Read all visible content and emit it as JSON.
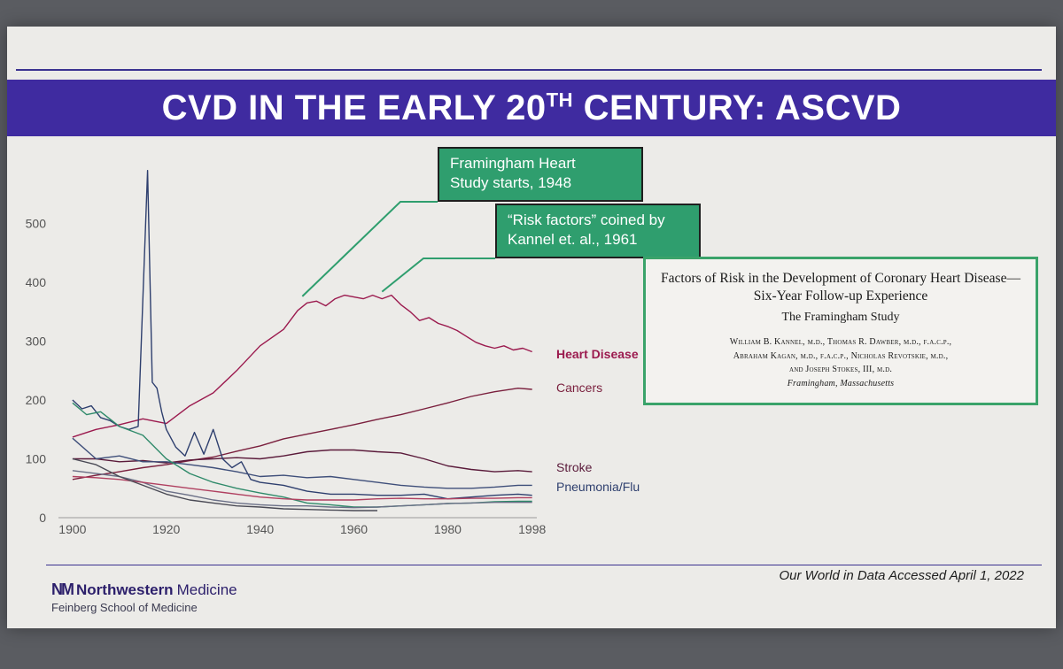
{
  "slide": {
    "title_main": "CVD IN THE EARLY 20",
    "title_sup": "TH",
    "title_end": " CENTURY: ASCVD",
    "callout_fhs_line1": "Framingham Heart",
    "callout_fhs_line2": "Study starts, 1948",
    "callout_rf_line1": "“Risk factors” coined by",
    "callout_rf_line2": "Kannel et. al., 1961",
    "paper": {
      "title_line1": "Factors of Risk in the Development of Coronary Heart Disease—",
      "title_line2": "Six-Year Follow-up Experience",
      "study": "The Framingham Study",
      "authors_line1": "William B. Kannel, m.d., Thomas R. Dawber, m.d., f.a.c.p.,",
      "authors_line2": "Abraham Kagan, m.d., f.a.c.p., Nicholas Revotskie, m.d.,",
      "authors_line3": "and Joseph Stokes, III, m.d.",
      "location": "Framingham, Massachusetts"
    },
    "logo_mark": "NM",
    "logo_name": "Northwestern",
    "logo_medicine": "Medicine",
    "logo_sub": "Feinberg School of Medicine",
    "source": "Our World in Data Accessed April 1, 2022"
  },
  "chart_data": {
    "type": "line",
    "title": "",
    "xlabel": "",
    "ylabel": "",
    "xlim": [
      1897,
      1999
    ],
    "ylim": [
      0,
      600
    ],
    "x_ticks": [
      1900,
      1920,
      1940,
      1960,
      1980,
      1998
    ],
    "y_ticks": [
      0,
      100,
      200,
      300,
      400,
      500
    ],
    "grid": false,
    "series": [
      {
        "name": "Heart Disease",
        "color": "#9b1a4e",
        "points": [
          [
            1900,
            137
          ],
          [
            1905,
            150
          ],
          [
            1910,
            158
          ],
          [
            1915,
            168
          ],
          [
            1920,
            160
          ],
          [
            1925,
            190
          ],
          [
            1930,
            212
          ],
          [
            1935,
            250
          ],
          [
            1940,
            292
          ],
          [
            1945,
            320
          ],
          [
            1948,
            352
          ],
          [
            1950,
            365
          ],
          [
            1952,
            368
          ],
          [
            1954,
            360
          ],
          [
            1956,
            372
          ],
          [
            1958,
            378
          ],
          [
            1960,
            375
          ],
          [
            1962,
            372
          ],
          [
            1964,
            378
          ],
          [
            1966,
            372
          ],
          [
            1968,
            378
          ],
          [
            1970,
            362
          ],
          [
            1972,
            350
          ],
          [
            1974,
            335
          ],
          [
            1976,
            340
          ],
          [
            1978,
            330
          ],
          [
            1980,
            325
          ],
          [
            1982,
            318
          ],
          [
            1984,
            308
          ],
          [
            1986,
            298
          ],
          [
            1988,
            292
          ],
          [
            1990,
            288
          ],
          [
            1992,
            292
          ],
          [
            1994,
            285
          ],
          [
            1996,
            288
          ],
          [
            1998,
            282
          ]
        ]
      },
      {
        "name": "Cancers",
        "color": "#7a1f3d",
        "points": [
          [
            1900,
            65
          ],
          [
            1905,
            72
          ],
          [
            1910,
            78
          ],
          [
            1915,
            85
          ],
          [
            1920,
            90
          ],
          [
            1925,
            97
          ],
          [
            1930,
            103
          ],
          [
            1935,
            113
          ],
          [
            1940,
            122
          ],
          [
            1945,
            134
          ],
          [
            1950,
            142
          ],
          [
            1955,
            150
          ],
          [
            1960,
            158
          ],
          [
            1965,
            167
          ],
          [
            1970,
            175
          ],
          [
            1975,
            185
          ],
          [
            1980,
            195
          ],
          [
            1985,
            206
          ],
          [
            1990,
            214
          ],
          [
            1995,
            220
          ],
          [
            1998,
            218
          ]
        ]
      },
      {
        "name": "Stroke",
        "color": "#5a1a3a",
        "points": [
          [
            1900,
            100
          ],
          [
            1905,
            100
          ],
          [
            1910,
            95
          ],
          [
            1915,
            97
          ],
          [
            1920,
            93
          ],
          [
            1925,
            98
          ],
          [
            1930,
            100
          ],
          [
            1935,
            102
          ],
          [
            1940,
            100
          ],
          [
            1945,
            105
          ],
          [
            1950,
            112
          ],
          [
            1955,
            115
          ],
          [
            1960,
            115
          ],
          [
            1965,
            112
          ],
          [
            1970,
            110
          ],
          [
            1975,
            100
          ],
          [
            1980,
            88
          ],
          [
            1985,
            82
          ],
          [
            1990,
            78
          ],
          [
            1995,
            80
          ],
          [
            1998,
            78
          ]
        ]
      },
      {
        "name": "Pneumonia/Flu",
        "color": "#2e3f6e",
        "points": [
          [
            1900,
            200
          ],
          [
            1902,
            185
          ],
          [
            1904,
            190
          ],
          [
            1906,
            170
          ],
          [
            1908,
            165
          ],
          [
            1910,
            155
          ],
          [
            1912,
            150
          ],
          [
            1914,
            155
          ],
          [
            1916,
            590
          ],
          [
            1917,
            230
          ],
          [
            1918,
            220
          ],
          [
            1919,
            180
          ],
          [
            1920,
            150
          ],
          [
            1922,
            120
          ],
          [
            1924,
            105
          ],
          [
            1926,
            145
          ],
          [
            1928,
            108
          ],
          [
            1930,
            150
          ],
          [
            1932,
            100
          ],
          [
            1934,
            85
          ],
          [
            1936,
            95
          ],
          [
            1938,
            65
          ],
          [
            1940,
            60
          ],
          [
            1945,
            55
          ],
          [
            1950,
            45
          ],
          [
            1955,
            40
          ],
          [
            1960,
            40
          ],
          [
            1965,
            38
          ],
          [
            1970,
            38
          ],
          [
            1975,
            40
          ],
          [
            1980,
            32
          ],
          [
            1985,
            35
          ],
          [
            1990,
            38
          ],
          [
            1995,
            40
          ],
          [
            1998,
            38
          ]
        ]
      },
      {
        "name": "",
        "color": "#3f4f7a",
        "points": [
          [
            1900,
            135
          ],
          [
            1905,
            100
          ],
          [
            1910,
            105
          ],
          [
            1915,
            95
          ],
          [
            1920,
            95
          ],
          [
            1925,
            90
          ],
          [
            1930,
            85
          ],
          [
            1935,
            78
          ],
          [
            1940,
            70
          ],
          [
            1945,
            72
          ],
          [
            1950,
            68
          ],
          [
            1955,
            70
          ],
          [
            1960,
            65
          ],
          [
            1965,
            60
          ],
          [
            1970,
            55
          ],
          [
            1975,
            52
          ],
          [
            1980,
            50
          ],
          [
            1985,
            50
          ],
          [
            1990,
            52
          ],
          [
            1995,
            55
          ],
          [
            1998,
            55
          ]
        ]
      },
      {
        "name": "",
        "color": "#2f8a6a",
        "points": [
          [
            1900,
            195
          ],
          [
            1903,
            175
          ],
          [
            1906,
            180
          ],
          [
            1910,
            155
          ],
          [
            1915,
            140
          ],
          [
            1920,
            100
          ],
          [
            1925,
            75
          ],
          [
            1930,
            60
          ],
          [
            1935,
            50
          ],
          [
            1940,
            42
          ],
          [
            1945,
            35
          ],
          [
            1950,
            25
          ],
          [
            1955,
            22
          ],
          [
            1960,
            18
          ],
          [
            1965,
            18
          ],
          [
            1970,
            20
          ],
          [
            1975,
            22
          ],
          [
            1980,
            24
          ],
          [
            1985,
            25
          ],
          [
            1990,
            27
          ],
          [
            1995,
            28
          ],
          [
            1998,
            28
          ]
        ]
      },
      {
        "name": "",
        "color": "#6a6f86",
        "points": [
          [
            1900,
            80
          ],
          [
            1905,
            75
          ],
          [
            1910,
            70
          ],
          [
            1915,
            60
          ],
          [
            1920,
            45
          ],
          [
            1925,
            38
          ],
          [
            1930,
            30
          ],
          [
            1935,
            25
          ],
          [
            1940,
            22
          ],
          [
            1945,
            20
          ],
          [
            1950,
            20
          ],
          [
            1955,
            18
          ],
          [
            1960,
            17
          ],
          [
            1965,
            18
          ],
          [
            1970,
            20
          ],
          [
            1975,
            22
          ],
          [
            1980,
            24
          ],
          [
            1985,
            25
          ],
          [
            1990,
            26
          ],
          [
            1995,
            26
          ],
          [
            1998,
            26
          ]
        ]
      },
      {
        "name": "",
        "color": "#b04060",
        "points": [
          [
            1900,
            70
          ],
          [
            1905,
            68
          ],
          [
            1910,
            65
          ],
          [
            1915,
            60
          ],
          [
            1920,
            55
          ],
          [
            1925,
            50
          ],
          [
            1930,
            45
          ],
          [
            1935,
            40
          ],
          [
            1940,
            35
          ],
          [
            1945,
            32
          ],
          [
            1950,
            30
          ],
          [
            1955,
            30
          ],
          [
            1960,
            30
          ],
          [
            1965,
            32
          ],
          [
            1970,
            33
          ],
          [
            1975,
            32
          ],
          [
            1980,
            32
          ],
          [
            1985,
            33
          ],
          [
            1990,
            33
          ],
          [
            1995,
            34
          ],
          [
            1998,
            34
          ]
        ]
      },
      {
        "name": "",
        "color": "#4a4a55",
        "points": [
          [
            1900,
            100
          ],
          [
            1905,
            90
          ],
          [
            1910,
            70
          ],
          [
            1915,
            55
          ],
          [
            1920,
            40
          ],
          [
            1925,
            30
          ],
          [
            1930,
            25
          ],
          [
            1935,
            20
          ],
          [
            1940,
            18
          ],
          [
            1945,
            15
          ],
          [
            1950,
            14
          ],
          [
            1955,
            13
          ],
          [
            1960,
            12
          ],
          [
            1965,
            12
          ]
        ]
      }
    ],
    "annotations": [
      {
        "name": "fhs-1948",
        "x": 1949,
        "y": 370
      },
      {
        "name": "risk-factors-1961",
        "x": 1966,
        "y": 378
      }
    ]
  }
}
